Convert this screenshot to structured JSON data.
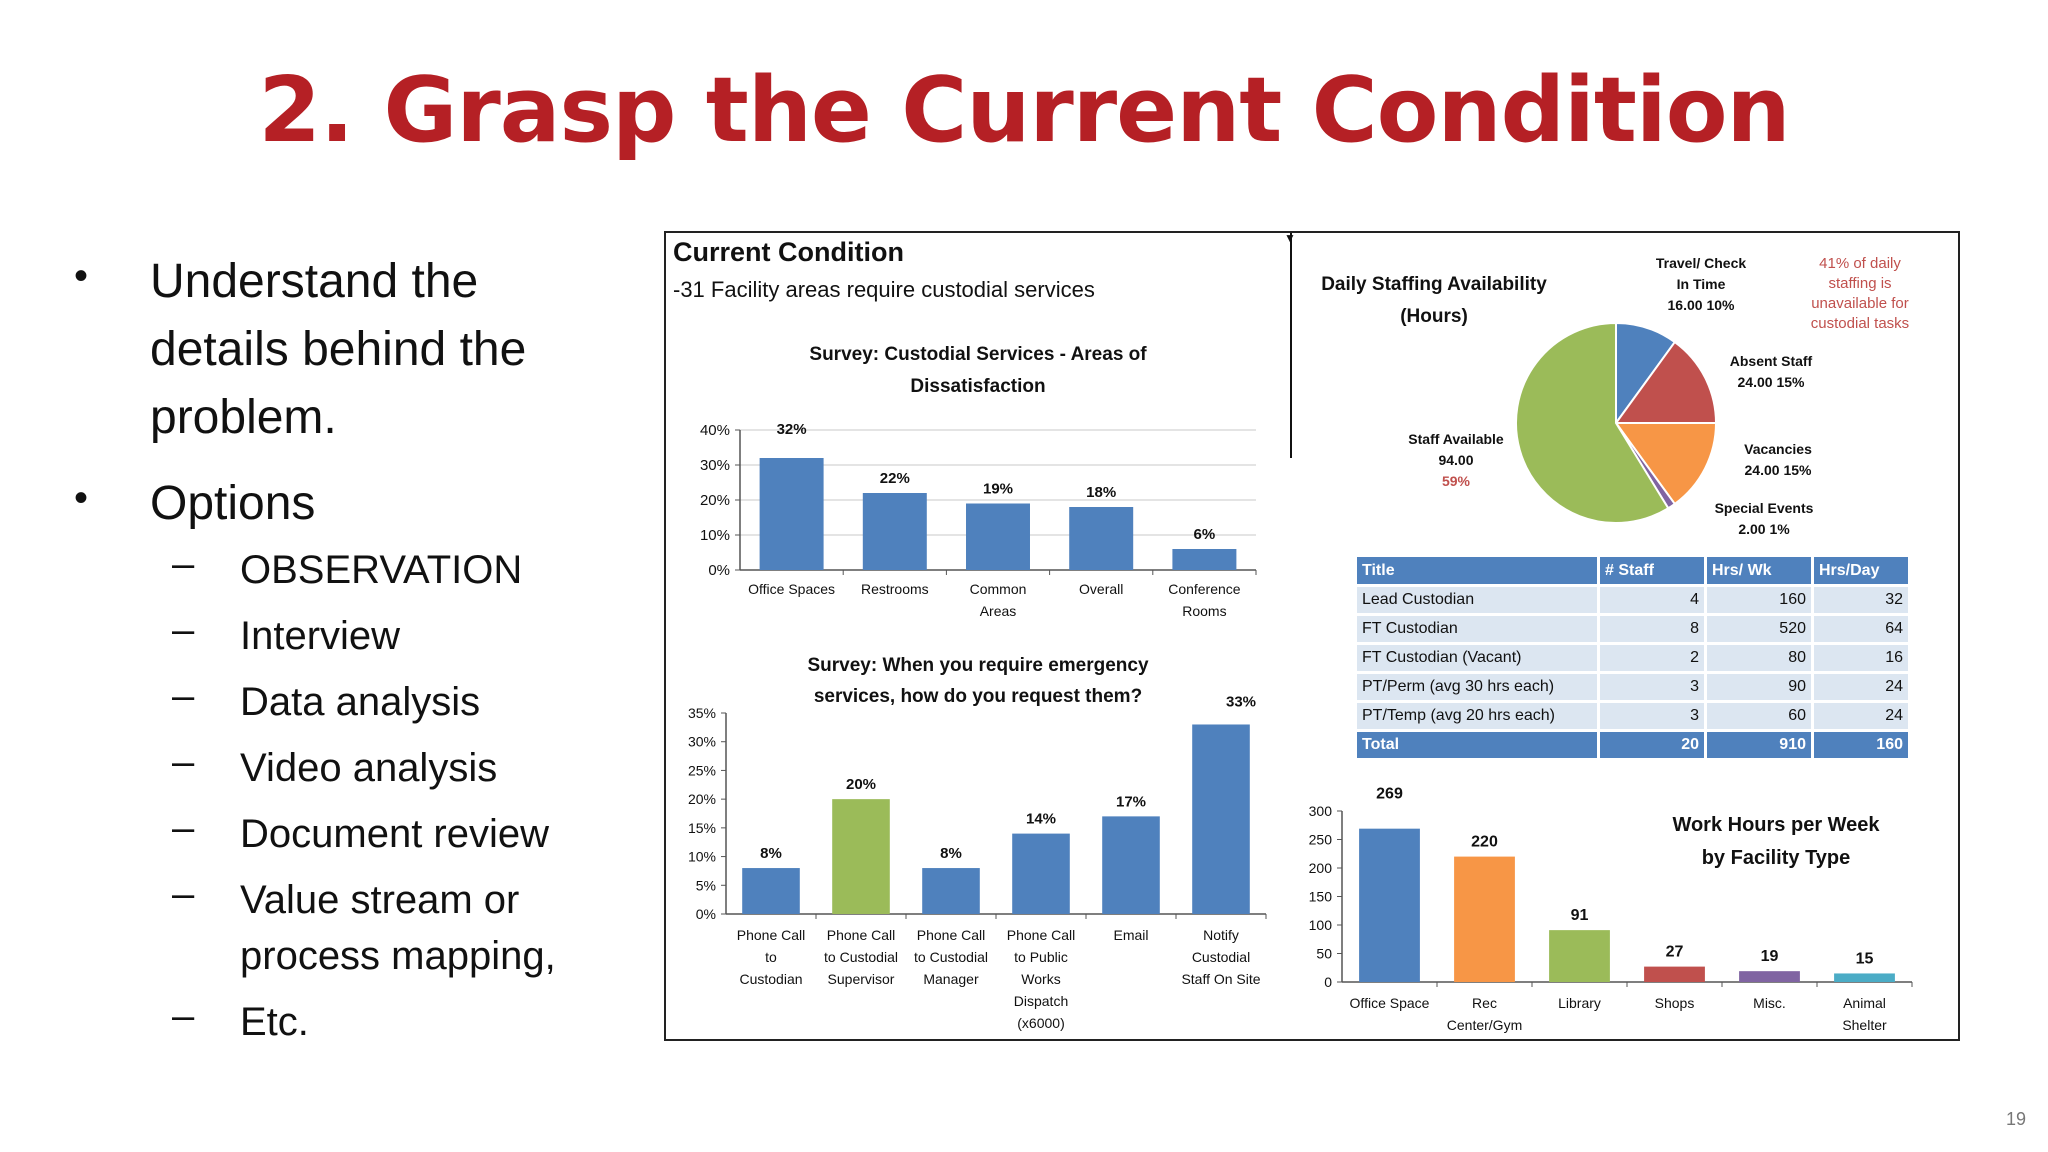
{
  "slide": {
    "title": "2. Grasp the Current Condition",
    "page_number": "19",
    "bullets": [
      {
        "text_lines": [
          "Understand the",
          "details behind the",
          "problem."
        ]
      },
      {
        "text_lines": [
          "Options"
        ]
      }
    ],
    "sub_bullets": [
      {
        "text_lines": [
          "OBSERVATION"
        ]
      },
      {
        "text_lines": [
          "Interview"
        ]
      },
      {
        "text_lines": [
          "Data analysis"
        ]
      },
      {
        "text_lines": [
          "Video analysis"
        ]
      },
      {
        "text_lines": [
          "Document review"
        ]
      },
      {
        "text_lines": [
          "Value stream or",
          "process mapping,"
        ]
      },
      {
        "text_lines": [
          "Etc."
        ]
      }
    ],
    "bullet_glyph": "•",
    "dash_glyph": "–"
  },
  "panel": {
    "title": "Current Condition",
    "subtitle": "-31  Facility areas require custodial services"
  },
  "colors": {
    "title_red": "#b52025",
    "blue": "#4f81bd",
    "green": "#9bbb59",
    "red": "#c0504d",
    "orange": "#f79646",
    "purple": "#8064a2",
    "teal": "#4bacc6",
    "table_header": "#4f81bd",
    "table_row": "#dce6f1"
  },
  "chart_data": [
    {
      "id": "dissatisfaction",
      "type": "bar",
      "title_lines": [
        "Survey: Custodial Services - Areas of",
        "Dissatisfaction"
      ],
      "categories": [
        [
          "Office Spaces"
        ],
        [
          "Restrooms"
        ],
        [
          "Common",
          "Areas"
        ],
        [
          "Overall"
        ],
        [
          "Conference",
          "Rooms"
        ]
      ],
      "values": [
        32,
        22,
        19,
        18,
        6
      ],
      "data_labels": [
        "32%",
        "22%",
        "19%",
        "18%",
        "6%"
      ],
      "ylim": [
        0,
        40
      ],
      "yticks": [
        0,
        10,
        20,
        30,
        40
      ],
      "ytick_labels": [
        "0%",
        "10%",
        "20%",
        "30%",
        "40%"
      ],
      "grid": true,
      "bar_colors": [
        "#4f81bd",
        "#4f81bd",
        "#4f81bd",
        "#4f81bd",
        "#4f81bd"
      ]
    },
    {
      "id": "emergency",
      "type": "bar",
      "title_lines": [
        "Survey: When you require emergency",
        "services, how do you request them?"
      ],
      "categories": [
        [
          "Phone Call",
          "to",
          "Custodian"
        ],
        [
          "Phone Call",
          "to Custodial",
          "Supervisor"
        ],
        [
          "Phone Call",
          "to Custodial",
          "Manager"
        ],
        [
          "Phone Call",
          "to Public",
          "Works",
          "Dispatch",
          "(x6000)"
        ],
        [
          "Email"
        ],
        [
          "Notify",
          "Custodial",
          "Staff On Site"
        ]
      ],
      "values": [
        8,
        20,
        8,
        14,
        17,
        33
      ],
      "data_labels": [
        "8%",
        "20%",
        "8%",
        "14%",
        "17%",
        "33%"
      ],
      "ylim": [
        0,
        35
      ],
      "yticks": [
        0,
        5,
        10,
        15,
        20,
        25,
        30,
        35
      ],
      "ytick_labels": [
        "0%",
        "5%",
        "10%",
        "15%",
        "20%",
        "25%",
        "30%",
        "35%"
      ],
      "grid": false,
      "bar_colors": [
        "#4f81bd",
        "#9bbb59",
        "#4f81bd",
        "#4f81bd",
        "#4f81bd",
        "#4f81bd"
      ]
    },
    {
      "id": "staffing_pie",
      "type": "pie",
      "title_lines": [
        "Daily Staffing  Availability",
        "(Hours)"
      ],
      "note_lines": [
        "41% of daily",
        "staffing is",
        "unavailable  for",
        "custodial tasks"
      ],
      "slices": [
        {
          "label_lines": [
            "Travel/ Check",
            "In Time",
            "16.00 10%"
          ],
          "value": 16,
          "color": "#4f81bd"
        },
        {
          "label_lines": [
            "Absent Staff",
            "24.00  15%"
          ],
          "value": 24,
          "color": "#c0504d"
        },
        {
          "label_lines": [
            "Vacancies",
            "24.00  15%"
          ],
          "value": 24,
          "color": "#f79646"
        },
        {
          "label_lines": [
            "Special Events",
            "2.00 1%"
          ],
          "value": 2,
          "color": "#8064a2"
        },
        {
          "label_lines": [
            "Staff Available",
            "94.00",
            "59%"
          ],
          "value": 94,
          "color": "#9bbb59"
        }
      ]
    },
    {
      "id": "work_hours",
      "type": "bar",
      "title_lines": [
        "Work Hours per Week",
        "by Facility Type"
      ],
      "categories": [
        [
          "Office Space"
        ],
        [
          "Rec",
          "Center/Gym"
        ],
        [
          "Library"
        ],
        [
          "Shops"
        ],
        [
          "Misc."
        ],
        [
          "Animal",
          "Shelter"
        ]
      ],
      "values": [
        269,
        220,
        91,
        27,
        19,
        15
      ],
      "data_labels": [
        "269",
        "220",
        "91",
        "27",
        "19",
        "15"
      ],
      "ylim": [
        0,
        300
      ],
      "yticks": [
        0,
        50,
        100,
        150,
        200,
        250,
        300
      ],
      "ytick_labels": [
        "0",
        "50",
        "100",
        "150",
        "200",
        "250",
        "300"
      ],
      "grid": false,
      "bar_colors": [
        "#4f81bd",
        "#f79646",
        "#9bbb59",
        "#c0504d",
        "#8064a2",
        "#4bacc6"
      ]
    },
    {
      "id": "staff_table",
      "type": "table",
      "headers": [
        "Title",
        "# Staff",
        "Hrs/ Wk",
        "Hrs/Day"
      ],
      "rows": [
        [
          "Lead Custodian",
          "4",
          "160",
          "32"
        ],
        [
          "FT Custodian",
          "8",
          "520",
          "64"
        ],
        [
          "FT Custodian (Vacant)",
          "2",
          "80",
          "16"
        ],
        [
          "PT/Perm (avg 30 hrs each)",
          "3",
          "90",
          "24"
        ],
        [
          "PT/Temp (avg 20 hrs each)",
          "3",
          "60",
          "24"
        ]
      ],
      "total": [
        "Total",
        "20",
        "910",
        "160"
      ]
    }
  ]
}
